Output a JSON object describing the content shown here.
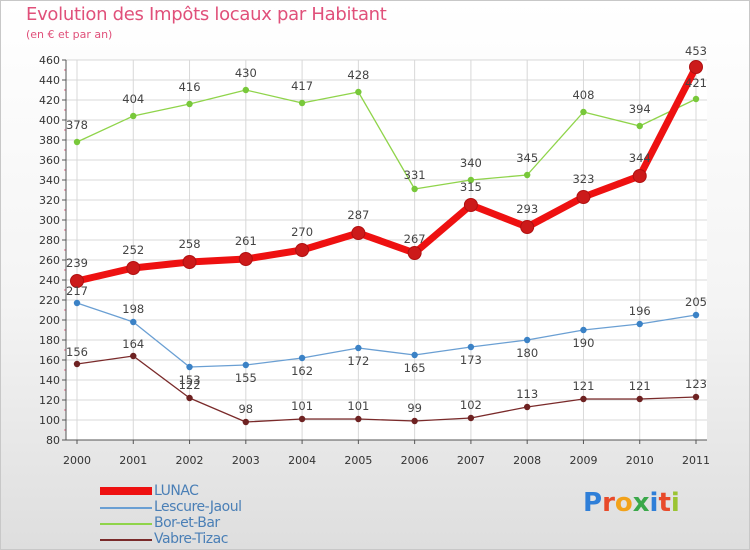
{
  "title": "Evolution des Impôts locaux par Habitant",
  "subtitle": "(en € et par an)",
  "logo_text": "Proxiti",
  "logo_colors": [
    "#2f7fd8",
    "#e84a2a",
    "#f2a21a",
    "#3aa84a",
    "#2f7fd8",
    "#e84a2a",
    "#9bc432"
  ],
  "chart_data": {
    "type": "line",
    "x": [
      "2000",
      "2001",
      "2002",
      "2003",
      "2004",
      "2005",
      "2006",
      "2007",
      "2008",
      "2009",
      "2010",
      "2011"
    ],
    "ylim": [
      80,
      460
    ],
    "yticks": [
      80,
      100,
      120,
      140,
      160,
      180,
      200,
      220,
      240,
      260,
      280,
      300,
      320,
      340,
      360,
      380,
      400,
      420,
      440,
      460
    ],
    "grid": true,
    "legend_placement": "bottom-left",
    "series": [
      {
        "name": "LUNAC",
        "color": "#ee1111",
        "marker": "#cc1a1a",
        "values": [
          239,
          252,
          258,
          261,
          270,
          287,
          267,
          315,
          293,
          323,
          344,
          453
        ]
      },
      {
        "name": "Lescure-Jaoul",
        "color": "#6a9fd3",
        "marker": "#3b82c6",
        "values": [
          217,
          198,
          153,
          155,
          162,
          172,
          165,
          173,
          180,
          190,
          196,
          205
        ]
      },
      {
        "name": "Bor-et-Bar",
        "color": "#8fd44a",
        "marker": "#78c83a",
        "values": [
          378,
          404,
          416,
          430,
          417,
          428,
          331,
          340,
          345,
          408,
          394,
          421
        ]
      },
      {
        "name": "Vabre-Tizac",
        "color": "#7a2a2a",
        "marker": "#6e2222",
        "values": [
          156,
          164,
          122,
          98,
          101,
          101,
          99,
          102,
          113,
          121,
          121,
          123
        ]
      }
    ]
  }
}
